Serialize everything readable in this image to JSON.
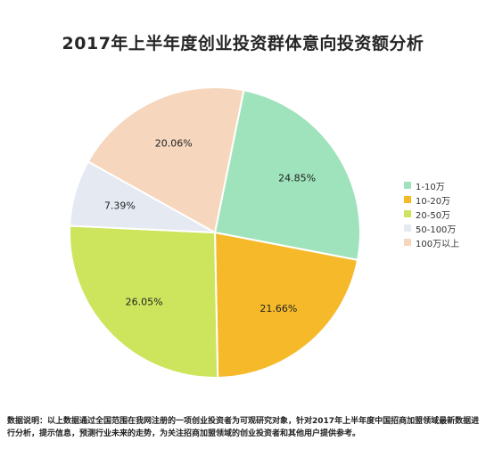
{
  "chart_data": {
    "type": "pie",
    "title": "2017年上半年度创业投资群体意向投资额分析",
    "categories": [
      "1-10万",
      "10-20万",
      "20-50万",
      "50-100万",
      "100万以上"
    ],
    "values": [
      24.85,
      21.66,
      26.05,
      7.39,
      20.06
    ],
    "value_labels": [
      "24.85%",
      "21.66%",
      "26.05%",
      "7.39%",
      "20.06%"
    ],
    "colors": [
      "#9ee3bb",
      "#f5b92a",
      "#cde55d",
      "#e4e9f2",
      "#f6d7bd"
    ],
    "legend_position": "right"
  },
  "note": {
    "label": "数据说明：",
    "text": "以上数据通过全国范围在我网注册的一项创业投资者为可观研究对象，针对2017年上半年度中国招商加盟领域最新数据进行分析，提示信息，预测行业未来的走势，为关注招商加盟领域的创业投资者和其他用户提供参考。"
  }
}
